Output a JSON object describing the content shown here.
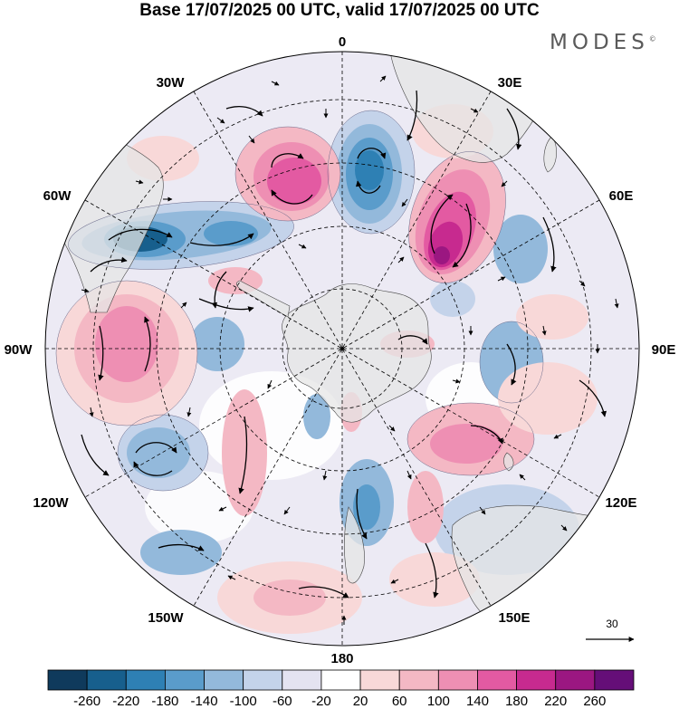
{
  "title": "Base 17/07/2025 00 UTC, valid 17/07/2025 00 UTC",
  "brand": "MODES",
  "brand_mark": "©",
  "map": {
    "projection": "south polar stereographic",
    "longitude_labels": {
      "0": "0",
      "30E": "30E",
      "60E": "60E",
      "90E": "90E",
      "120E": "120E",
      "150E": "150E",
      "180": "180",
      "150W": "150W",
      "120W": "120W",
      "90W": "90W",
      "60W": "60W",
      "30W": "30W"
    },
    "reference_vector_label": "30",
    "land_color": "#e6e6e6",
    "graticule": "dashed"
  },
  "colorbar": {
    "ticks": [
      "-260",
      "-220",
      "-180",
      "-140",
      "-100",
      "-60",
      "-20",
      "20",
      "60",
      "100",
      "140",
      "180",
      "220",
      "260"
    ],
    "colors": [
      "#0f3a5c",
      "#175f8d",
      "#2e80b4",
      "#5a9ccb",
      "#93b9db",
      "#c4d3ea",
      "#e4e3f1",
      "#ffffff",
      "#f8d8d8",
      "#f4b8c4",
      "#ee8fb3",
      "#e35aa2",
      "#c72a8f",
      "#9b1781",
      "#650e78"
    ]
  }
}
